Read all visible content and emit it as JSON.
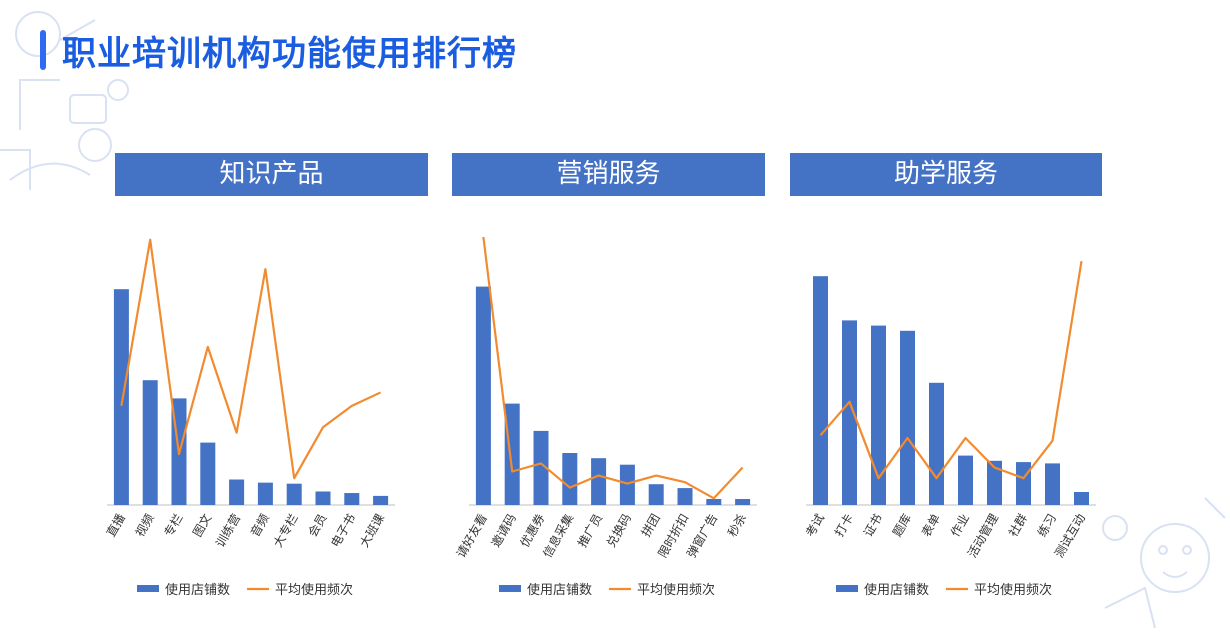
{
  "page": {
    "title": "职业培训机构功能使用排行榜"
  },
  "colors": {
    "bar": "#4472c4",
    "line": "#f28b30",
    "axis": "#bfbfbf",
    "title": "#1a5de0"
  },
  "legend": {
    "bar_label": "使用店铺数",
    "line_label": "平均使用频次"
  },
  "chart_data": [
    {
      "type": "bar+line",
      "title": "知识产品",
      "categories": [
        "直播",
        "视频",
        "专栏",
        "图文",
        "训练营",
        "音频",
        "大专栏",
        "会员",
        "电子书",
        "大班课"
      ],
      "series": [
        {
          "name": "使用店铺数",
          "type": "bar",
          "values": [
            83,
            48,
            41,
            24,
            9.8,
            8.6,
            8.2,
            5.2,
            4.6,
            3.5
          ]
        },
        {
          "name": "平均使用频次",
          "type": "line",
          "values": [
            37,
            99,
            19,
            59,
            27,
            88,
            10,
            29,
            37,
            42
          ]
        }
      ]
    },
    {
      "type": "bar+line",
      "title": "营销服务",
      "categories": [
        "请好友看",
        "邀请码",
        "优惠券",
        "信息采集",
        "推广员",
        "兑换码",
        "拼团",
        "限时折扣",
        "弹窗广告",
        "秒杀"
      ],
      "series": [
        {
          "name": "使用店铺数",
          "type": "bar",
          "values": [
            84,
            39,
            28.5,
            20,
            18,
            15.5,
            8,
            6.5,
            2.3,
            2.3
          ]
        },
        {
          "name": "平均使用频次",
          "type": "line",
          "values": [
            100,
            12.5,
            15.5,
            6.5,
            11,
            8,
            11,
            8.5,
            2.5,
            14
          ]
        }
      ]
    },
    {
      "type": "bar+line",
      "title": "助学服务",
      "categories": [
        "考试",
        "打卡",
        "证书",
        "题库",
        "表单",
        "作业",
        "活动管理",
        "社群",
        "练习",
        "测试互动"
      ],
      "series": [
        {
          "name": "使用店铺数",
          "type": "bar",
          "values": [
            88,
            71,
            69,
            67,
            47,
            19,
            17,
            16.5,
            16,
            5
          ]
        },
        {
          "name": "平均使用频次",
          "type": "line",
          "values": [
            26,
            38.5,
            10,
            25,
            10,
            25,
            14,
            10,
            24,
            91
          ]
        }
      ]
    }
  ]
}
